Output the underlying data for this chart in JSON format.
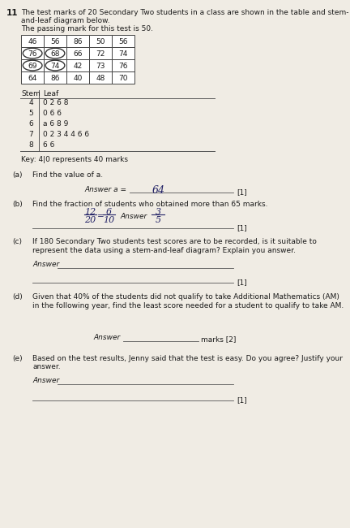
{
  "question_number": "11",
  "intro_line1": "The test marks of 20 Secondary Two students in a class are shown in the table and stem-",
  "intro_line2": "and-leaf diagram below.",
  "intro_line3": "The passing mark for this test is 50.",
  "table_data": [
    [
      "46",
      "56",
      "86",
      "50",
      "56"
    ],
    [
      "76",
      "68",
      "66",
      "72",
      "74"
    ],
    [
      "69",
      "74",
      "42",
      "73",
      "76"
    ],
    [
      "64",
      "86",
      "40",
      "48",
      "70"
    ]
  ],
  "circle_cells": [
    [
      1,
      0
    ],
    [
      2,
      0
    ],
    [
      1,
      1
    ],
    [
      2,
      1
    ]
  ],
  "stem_leaf": [
    [
      "4",
      "0 2 6 8"
    ],
    [
      "5",
      "0 6 6"
    ],
    [
      "6",
      "a 6 8 9"
    ],
    [
      "7",
      "0 2 3 4 4 6 6"
    ],
    [
      "8",
      "6 6"
    ]
  ],
  "key_text": "Key: 4|0 represents 40 marks",
  "part_a_label": "(a)",
  "part_a_text": "Find the value of a.",
  "part_a_answer_label": "Answer a =",
  "part_a_answer_value": "64",
  "part_a_marks": "[1]",
  "part_b_label": "(b)",
  "part_b_text": "Find the fraction of students who obtained more than 65 marks.",
  "part_b_frac_num1": "12",
  "part_b_frac_den1": "20",
  "part_b_frac_num2": "6",
  "part_b_frac_den2": "10",
  "part_b_frac_num3": "3",
  "part_b_frac_den3": "5",
  "part_b_answer_label": "Answer",
  "part_b_marks": "[1]",
  "part_c_label": "(c)",
  "part_c_text1": "If 180 Secondary Two students test scores are to be recorded, is it suitable to",
  "part_c_text2": "represent the data using a stem-and-leaf diagram? Explain you answer.",
  "part_c_answer_label": "Answer",
  "part_c_marks": "[1]",
  "part_d_label": "(d)",
  "part_d_text1": "Given that 40% of the students did not qualify to take Additional Mathematics (AM)",
  "part_d_text2": "in the following year, find the least score needed for a student to qualify to take AM.",
  "part_d_answer_label": "Answer",
  "part_d_marks": "marks [2]",
  "part_e_label": "(e)",
  "part_e_text1": "Based on the test results, Jenny said that the test is easy. Do you agree? Justify your",
  "part_e_text2": "answer.",
  "part_e_answer_label": "Answer",
  "part_e_marks": "[1]",
  "bg_color": "#f0ece4",
  "text_color": "#1a1a1a",
  "line_color": "#555555",
  "table_border_color": "#444444",
  "handwrite_color": "#222266"
}
